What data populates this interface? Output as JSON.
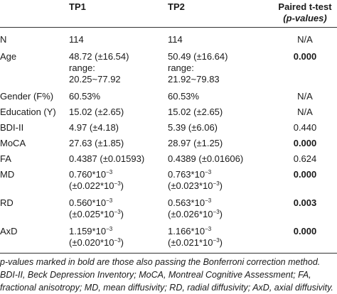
{
  "header": {
    "tp1": "TP1",
    "tp2": "TP2",
    "ptest_line1": "Paired t-test",
    "ptest_line2": "(p-values)"
  },
  "rows": [
    {
      "label": "N",
      "tp1": [
        "114"
      ],
      "tp2": [
        "114"
      ],
      "p": "N/A",
      "p_bold": false
    },
    {
      "label": "Age",
      "tp1": [
        "48.72 (±16.54)",
        "range:",
        "20.25~77.92"
      ],
      "tp2": [
        "50.49 (±16.64)",
        "range:",
        "21.92~79.83"
      ],
      "p": "0.000",
      "p_bold": true
    },
    {
      "label": "Gender (F%)",
      "tp1": [
        "60.53%"
      ],
      "tp2": [
        "60.53%"
      ],
      "p": "N/A",
      "p_bold": false
    },
    {
      "label": "Education (Y)",
      "tp1": [
        "15.02 (±2.65)"
      ],
      "tp2": [
        "15.02 (±2.65)"
      ],
      "p": "N/A",
      "p_bold": false
    },
    {
      "label": "BDI-II",
      "tp1": [
        "4.97 (±4.18)"
      ],
      "tp2": [
        "5.39 (±6.06)"
      ],
      "p": "0.440",
      "p_bold": false
    },
    {
      "label": "MoCA",
      "tp1": [
        "27.63 (±1.85)"
      ],
      "tp2": [
        "28.97 (±1.25)"
      ],
      "p": "0.000",
      "p_bold": true
    },
    {
      "label": "FA",
      "tp1": [
        "0.4387 (±0.01593)"
      ],
      "tp2": [
        "0.4389 (±0.01606)"
      ],
      "p": "0.624",
      "p_bold": false
    },
    {
      "label": "MD",
      "tp1": [
        "0.760*10",
        "(±0.022*10"
      ],
      "tp2": [
        "0.763*10",
        "(±0.023*10"
      ],
      "exp": "−3",
      "p": "0.000",
      "p_bold": true
    },
    {
      "label": "RD",
      "tp1": [
        "0.560*10",
        "(±0.025*10"
      ],
      "tp2": [
        "0.563*10",
        "(±0.026*10"
      ],
      "exp": "−3",
      "p": "0.003",
      "p_bold": true
    },
    {
      "label": "AxD",
      "tp1": [
        "1.159*10",
        "(±0.020*10"
      ],
      "tp2": [
        "1.166*10",
        "(±0.021*10"
      ],
      "exp": "−3",
      "p": "0.000",
      "p_bold": true
    }
  ],
  "footnote": {
    "line1": "p-values marked in bold are those also passing the Bonferroni correction method.",
    "line2": "BDI-II, Beck Depression Inventory; MoCA, Montreal Cognitive Assessment; FA,",
    "line3": "fractional anisotropy; MD, mean diffusivity; RD, radial diffusivity; AxD, axial diffusivity."
  }
}
